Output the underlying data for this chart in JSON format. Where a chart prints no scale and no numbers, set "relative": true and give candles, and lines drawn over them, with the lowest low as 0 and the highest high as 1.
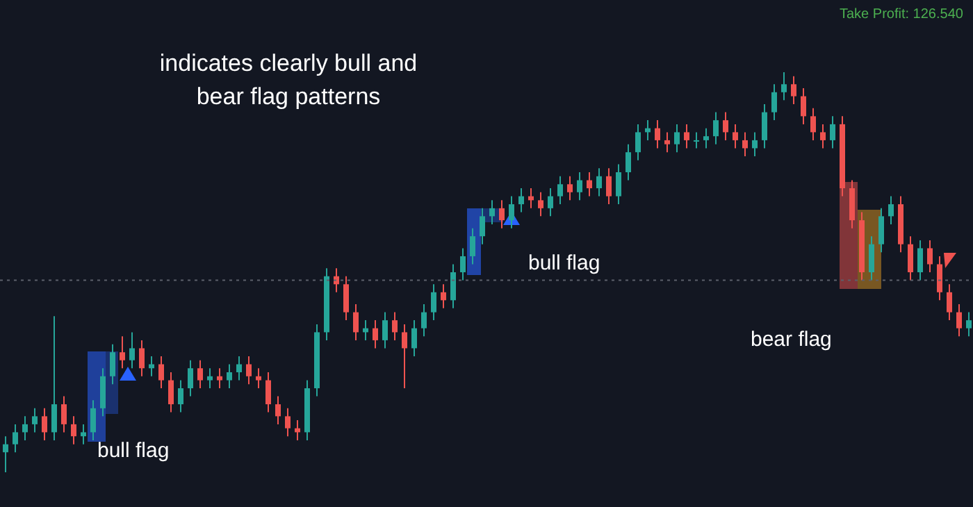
{
  "chart_data": {
    "type": "candlestick",
    "title": "indicates clearly bull and bear flag patterns",
    "relative": true,
    "colors": [
      "#26a69a",
      "#26a69a",
      "#26a69a",
      "#26a69a",
      "#ef5350",
      "#26a69a",
      "#ef5350",
      "#ef5350",
      "#26a69a",
      "#26a69a",
      "#26a69a",
      "#26a69a",
      "#ef5350",
      "#26a69a",
      "#ef5350",
      "#26a69a",
      "#ef5350",
      "#ef5350",
      "#26a69a",
      "#26a69a",
      "#ef5350",
      "#26a69a",
      "#ef5350",
      "#26a69a",
      "#26a69a",
      "#ef5350",
      "#ef5350",
      "#ef5350",
      "#ef5350",
      "#ef5350",
      "#ef5350",
      "#26a69a",
      "#26a69a",
      "#26a69a",
      "#ef5350",
      "#ef5350",
      "#ef5350",
      "#26a69a",
      "#ef5350",
      "#26a69a",
      "#ef5350",
      "#ef5350",
      "#26a69a",
      "#26a69a",
      "#26a69a",
      "#ef5350",
      "#26a69a",
      "#26a69a",
      "#26a69a",
      "#26a69a",
      "#26a69a",
      "#ef5350",
      "#26a69a",
      "#26a69a",
      "#ef5350",
      "#ef5350",
      "#26a69a",
      "#26a69a",
      "#ef5350",
      "#26a69a",
      "#ef5350",
      "#26a69a",
      "#ef5350",
      "#26a69a",
      "#26a69a",
      "#26a69a",
      "#26a69a",
      "#ef5350",
      "#ef5350",
      "#26a69a",
      "#ef5350",
      "#26a69a",
      "#26a69a",
      "#26a69a",
      "#ef5350",
      "#ef5350",
      "#ef5350",
      "#26a69a",
      "#26a69a",
      "#26a69a",
      "#26a69a",
      "#ef5350",
      "#ef5350",
      "#ef5350",
      "#ef5350",
      "#26a69a",
      "#ef5350",
      "#ef5350",
      "#ef5350",
      "#26a69a",
      "#26a69a",
      "#26a69a",
      "#ef5350",
      "#ef5350",
      "#26a69a",
      "#ef5350",
      "#ef5350",
      "#ef5350",
      "#ef5350",
      "#26a69a"
    ],
    "annotations": [
      "Take Profit: 126.540",
      "bull flag",
      "bull flag",
      "bear flag"
    ],
    "ref_lines": [
      {
        "axis": "y",
        "value": 0.48,
        "color": "#5d606b",
        "line_style": "dotted"
      }
    ],
    "categories": [
      null,
      null,
      null,
      null,
      null,
      null,
      null,
      null,
      null,
      null,
      null,
      null,
      null,
      null,
      null,
      null,
      null,
      null,
      null,
      null,
      null,
      null,
      null,
      null,
      null,
      null,
      null,
      null,
      null,
      null,
      null,
      null,
      null,
      null,
      null,
      null,
      null,
      null,
      null,
      null,
      null,
      null,
      null,
      null,
      null,
      null,
      null,
      null,
      null,
      null,
      null,
      null,
      null,
      null,
      null,
      null,
      null,
      null,
      null,
      null,
      null,
      null,
      null,
      null,
      null,
      null,
      null,
      null,
      null,
      null,
      null,
      null,
      null,
      null,
      null,
      null,
      null,
      null,
      null,
      null,
      null,
      null,
      null,
      null,
      null,
      null,
      null,
      null,
      null,
      null,
      null,
      null,
      null,
      null,
      null,
      null,
      null,
      null,
      null,
      null
    ],
    "ohlc": [
      [
        0.05,
        0.09,
        0,
        0.07
      ],
      [
        0.07,
        0.12,
        0.05,
        0.1
      ],
      [
        0.1,
        0.14,
        0.08,
        0.12
      ],
      [
        0.12,
        0.16,
        0.1,
        0.14
      ],
      [
        0.14,
        0.16,
        0.08,
        0.1
      ],
      [
        0.1,
        0.39,
        0.08,
        0.17
      ],
      [
        0.17,
        0.19,
        0.1,
        0.12
      ],
      [
        0.12,
        0.14,
        0.07,
        0.09
      ],
      [
        0.09,
        0.12,
        0.07,
        0.1
      ],
      [
        0.1,
        0.18,
        0.08,
        0.16
      ],
      [
        0.16,
        0.26,
        0.14,
        0.24
      ],
      [
        0.24,
        0.32,
        0.22,
        0.3
      ],
      [
        0.3,
        0.34,
        0.26,
        0.28
      ],
      [
        0.28,
        0.35,
        0.26,
        0.31
      ],
      [
        0.31,
        0.33,
        0.24,
        0.26
      ],
      [
        0.26,
        0.29,
        0.24,
        0.27
      ],
      [
        0.27,
        0.29,
        0.21,
        0.23
      ],
      [
        0.23,
        0.25,
        0.15,
        0.17
      ],
      [
        0.17,
        0.23,
        0.15,
        0.21
      ],
      [
        0.21,
        0.28,
        0.19,
        0.26
      ],
      [
        0.26,
        0.28,
        0.21,
        0.23
      ],
      [
        0.23,
        0.26,
        0.21,
        0.24
      ],
      [
        0.24,
        0.26,
        0.21,
        0.23
      ],
      [
        0.23,
        0.27,
        0.21,
        0.25
      ],
      [
        0.25,
        0.29,
        0.23,
        0.27
      ],
      [
        0.27,
        0.29,
        0.22,
        0.24
      ],
      [
        0.24,
        0.26,
        0.21,
        0.23
      ],
      [
        0.23,
        0.25,
        0.15,
        0.17
      ],
      [
        0.17,
        0.19,
        0.12,
        0.14
      ],
      [
        0.14,
        0.16,
        0.09,
        0.11
      ],
      [
        0.11,
        0.13,
        0.08,
        0.1
      ],
      [
        0.1,
        0.23,
        0.08,
        0.21
      ],
      [
        0.21,
        0.37,
        0.19,
        0.35
      ],
      [
        0.35,
        0.51,
        0.33,
        0.49
      ],
      [
        0.49,
        0.51,
        0.45,
        0.47
      ],
      [
        0.47,
        0.49,
        0.38,
        0.4
      ],
      [
        0.4,
        0.42,
        0.33,
        0.35
      ],
      [
        0.35,
        0.38,
        0.33,
        0.36
      ],
      [
        0.36,
        0.38,
        0.31,
        0.33
      ],
      [
        0.33,
        0.4,
        0.31,
        0.38
      ],
      [
        0.38,
        0.4,
        0.33,
        0.35
      ],
      [
        0.35,
        0.37,
        0.21,
        0.31
      ],
      [
        0.31,
        0.38,
        0.29,
        0.36
      ],
      [
        0.36,
        0.42,
        0.34,
        0.4
      ],
      [
        0.4,
        0.47,
        0.38,
        0.45
      ],
      [
        0.45,
        0.47,
        0.41,
        0.43
      ],
      [
        0.43,
        0.52,
        0.41,
        0.5
      ],
      [
        0.5,
        0.56,
        0.48,
        0.54
      ],
      [
        0.54,
        0.61,
        0.52,
        0.59
      ],
      [
        0.59,
        0.66,
        0.57,
        0.64
      ],
      [
        0.64,
        0.68,
        0.62,
        0.66
      ],
      [
        0.66,
        0.68,
        0.61,
        0.63
      ],
      [
        0.63,
        0.69,
        0.61,
        0.67
      ],
      [
        0.67,
        0.71,
        0.65,
        0.69
      ],
      [
        0.69,
        0.71,
        0.66,
        0.68
      ],
      [
        0.68,
        0.7,
        0.64,
        0.66
      ],
      [
        0.66,
        0.71,
        0.64,
        0.69
      ],
      [
        0.69,
        0.74,
        0.67,
        0.72
      ],
      [
        0.72,
        0.74,
        0.68,
        0.7
      ],
      [
        0.7,
        0.75,
        0.68,
        0.73
      ],
      [
        0.73,
        0.75,
        0.69,
        0.71
      ],
      [
        0.71,
        0.76,
        0.69,
        0.74
      ],
      [
        0.74,
        0.76,
        0.67,
        0.69
      ],
      [
        0.69,
        0.77,
        0.67,
        0.75
      ],
      [
        0.75,
        0.82,
        0.73,
        0.8
      ],
      [
        0.8,
        0.87,
        0.78,
        0.85
      ],
      [
        0.85,
        0.88,
        0.83,
        0.86
      ],
      [
        0.86,
        0.88,
        0.81,
        0.83
      ],
      [
        0.83,
        0.85,
        0.8,
        0.82
      ],
      [
        0.82,
        0.87,
        0.8,
        0.85
      ],
      [
        0.85,
        0.87,
        0.81,
        0.83
      ],
      [
        0.83,
        0.85,
        0.81,
        0.83
      ],
      [
        0.83,
        0.86,
        0.81,
        0.84
      ],
      [
        0.84,
        0.9,
        0.82,
        0.88
      ],
      [
        0.88,
        0.9,
        0.83,
        0.85
      ],
      [
        0.85,
        0.87,
        0.81,
        0.83
      ],
      [
        0.83,
        0.85,
        0.79,
        0.81
      ],
      [
        0.81,
        0.85,
        0.79,
        0.83
      ],
      [
        0.83,
        0.92,
        0.81,
        0.9
      ],
      [
        0.9,
        0.97,
        0.88,
        0.95
      ],
      [
        0.95,
        1,
        0.93,
        0.97
      ],
      [
        0.97,
        0.99,
        0.92,
        0.94
      ],
      [
        0.94,
        0.96,
        0.87,
        0.89
      ],
      [
        0.89,
        0.91,
        0.83,
        0.85
      ],
      [
        0.85,
        0.87,
        0.81,
        0.83
      ],
      [
        0.83,
        0.89,
        0.81,
        0.87
      ],
      [
        0.87,
        0.89,
        0.69,
        0.71
      ],
      [
        0.71,
        0.73,
        0.61,
        0.63
      ],
      [
        0.63,
        0.65,
        0.48,
        0.5
      ],
      [
        0.5,
        0.59,
        0.48,
        0.57
      ],
      [
        0.57,
        0.66,
        0.55,
        0.64
      ],
      [
        0.64,
        0.69,
        0.62,
        0.67
      ],
      [
        0.67,
        0.69,
        0.55,
        0.57
      ],
      [
        0.57,
        0.59,
        0.48,
        0.5
      ],
      [
        0.5,
        0.58,
        0.48,
        0.56
      ],
      [
        0.56,
        0.58,
        0.5,
        0.52
      ],
      [
        0.52,
        0.54,
        0.43,
        0.45
      ],
      [
        0.45,
        0.47,
        0.38,
        0.4
      ],
      [
        0.4,
        0.42,
        0.34,
        0.36
      ],
      [
        0.36,
        0.4,
        0.34,
        0.38
      ]
    ]
  }
}
